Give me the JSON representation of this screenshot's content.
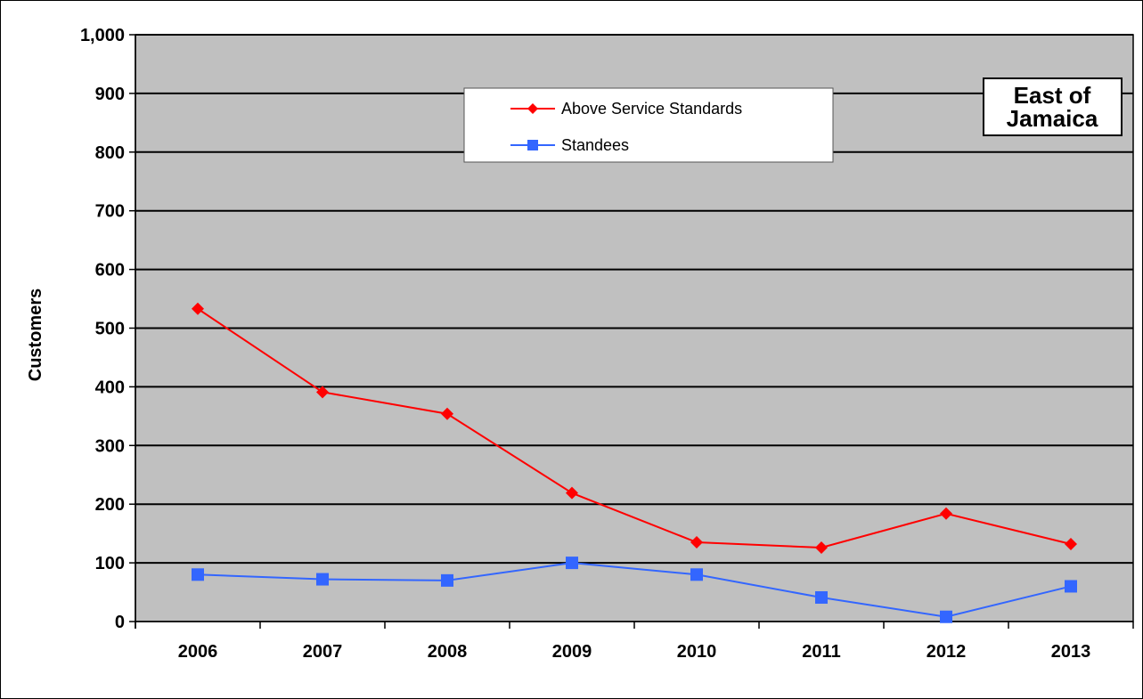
{
  "chart_data": {
    "type": "line",
    "title": "",
    "annotation": [
      "East of",
      "Jamaica"
    ],
    "xlabel": "",
    "ylabel": "Customers",
    "categories": [
      "2006",
      "2007",
      "2008",
      "2009",
      "2010",
      "2011",
      "2012",
      "2013"
    ],
    "ylim": [
      0,
      1000
    ],
    "yticks": [
      0,
      100,
      200,
      300,
      400,
      500,
      600,
      700,
      800,
      900,
      1000
    ],
    "ytick_labels": [
      "0",
      "100",
      "200",
      "300",
      "400",
      "500",
      "600",
      "700",
      "800",
      "900",
      "1,000"
    ],
    "grid": true,
    "plot_background": "#c0c0c0",
    "legend_position": "top-center",
    "series": [
      {
        "name": "Above Service Standards",
        "color": "#ff0000",
        "marker": "diamond",
        "values": [
          533,
          391,
          354,
          219,
          135,
          126,
          184,
          132
        ]
      },
      {
        "name": "Standees",
        "color": "#3366ff",
        "marker": "square",
        "values": [
          80,
          72,
          70,
          100,
          80,
          41,
          8,
          60
        ]
      }
    ]
  }
}
